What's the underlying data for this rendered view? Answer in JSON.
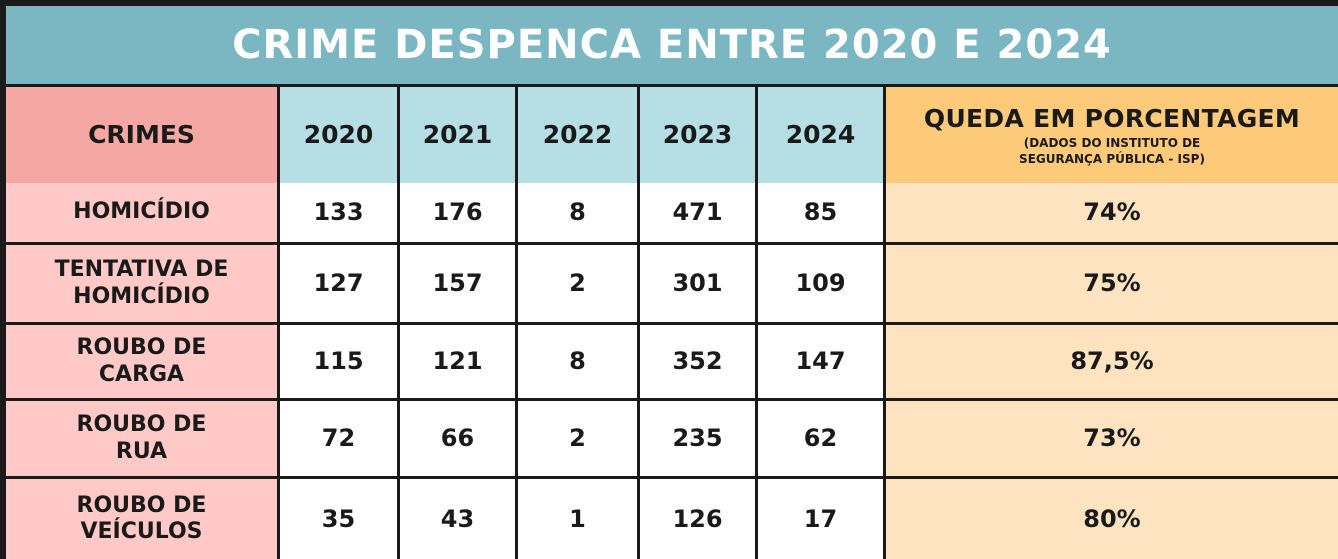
{
  "title": "CRIME DESPENCA ENTRE 2020 E 2024",
  "header": {
    "crimes": "CRIMES",
    "years": [
      "2020",
      "2021",
      "2022",
      "2023",
      "2024"
    ],
    "drop_title": "QUEDA EM PORCENTAGEM",
    "drop_source_line1": "(DADOS DO INSTITUTO DE",
    "drop_source_line2": "SEGURANÇA PÚBLICA - ISP)"
  },
  "rows": [
    {
      "crime_line1": "HOMICÍDIO",
      "crime_line2": "",
      "values": [
        "133",
        "176",
        "8",
        "471",
        "85"
      ],
      "drop": "74%"
    },
    {
      "crime_line1": "TENTATIVA DE",
      "crime_line2": "HOMICÍDIO",
      "values": [
        "127",
        "157",
        "2",
        "301",
        "109"
      ],
      "drop": "75%"
    },
    {
      "crime_line1": "ROUBO DE",
      "crime_line2": "CARGA",
      "values": [
        "115",
        "121",
        "8",
        "352",
        "147"
      ],
      "drop": "87,5%"
    },
    {
      "crime_line1": "ROUBO DE",
      "crime_line2": "RUA",
      "values": [
        "72",
        "66",
        "2",
        "235",
        "62"
      ],
      "drop": "73%"
    },
    {
      "crime_line1": "ROUBO DE",
      "crime_line2": "VEÍCULOS",
      "values": [
        "35",
        "43",
        "1",
        "126",
        "17"
      ],
      "drop": "80%"
    }
  ],
  "colors": {
    "title_bg": "#7ab7c2",
    "crimes_header_bg": "#f5a8a3",
    "year_header_bg": "#b5dfe5",
    "drop_header_bg": "#fdca79",
    "crime_cell_bg": "#ffc9c8",
    "value_cell_bg": "#ffffff",
    "drop_cell_bg": "#fde3c0"
  }
}
